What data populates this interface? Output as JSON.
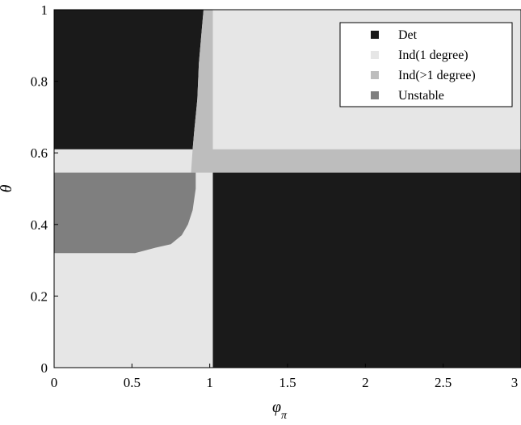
{
  "chart_data": {
    "type": "heatmap",
    "xlabel": "φ",
    "xlabel_subscript": "π",
    "ylabel": "θ",
    "xlim": [
      0,
      3
    ],
    "ylim": [
      0,
      1
    ],
    "x_ticks": [
      "0",
      "0.5",
      "1",
      "1.5",
      "2",
      "2.5",
      "3"
    ],
    "y_ticks": [
      "0",
      "0.2",
      "0.4",
      "0.6",
      "0.8",
      "1"
    ],
    "grid": false,
    "legend_position": "top-right",
    "categories": [
      {
        "name": "Det",
        "color": "#1a1a1a"
      },
      {
        "name": "Ind(1 degree)",
        "color": "#e6e6e6"
      },
      {
        "name": "Ind(>1 degree)",
        "color": "#bdbdbd"
      },
      {
        "name": "Unstable",
        "color": "#7f7f7f"
      }
    ],
    "regions": [
      {
        "category": "Ind(1 degree)",
        "description": "background",
        "polygon": [
          [
            0,
            0
          ],
          [
            3,
            0
          ],
          [
            3,
            1
          ],
          [
            0,
            1
          ]
        ]
      },
      {
        "category": "Det",
        "polygon": [
          [
            0,
            1
          ],
          [
            0.96,
            1
          ],
          [
            0.95,
            0.95
          ],
          [
            0.93,
            0.85
          ],
          [
            0.92,
            0.75
          ],
          [
            0.9,
            0.66
          ],
          [
            0.89,
            0.61
          ],
          [
            0,
            0.61
          ]
        ]
      },
      {
        "category": "Ind(>1 degree)",
        "polygon": [
          [
            0.96,
            1
          ],
          [
            1.02,
            1
          ],
          [
            1.02,
            0.61
          ],
          [
            3,
            0.61
          ],
          [
            3,
            0.545
          ],
          [
            0.88,
            0.545
          ],
          [
            0.89,
            0.61
          ],
          [
            0.9,
            0.66
          ],
          [
            0.92,
            0.75
          ],
          [
            0.93,
            0.85
          ],
          [
            0.95,
            0.95
          ]
        ]
      },
      {
        "category": "Det",
        "polygon": [
          [
            1.02,
            0
          ],
          [
            3,
            0
          ],
          [
            3,
            0.545
          ],
          [
            1.02,
            0.545
          ]
        ]
      },
      {
        "category": "Unstable",
        "polygon": [
          [
            0,
            0.545
          ],
          [
            0.91,
            0.545
          ],
          [
            0.91,
            0.5
          ],
          [
            0.89,
            0.44
          ],
          [
            0.86,
            0.4
          ],
          [
            0.82,
            0.37
          ],
          [
            0.75,
            0.345
          ],
          [
            0.65,
            0.335
          ],
          [
            0.52,
            0.32
          ],
          [
            0,
            0.32
          ]
        ]
      }
    ]
  }
}
